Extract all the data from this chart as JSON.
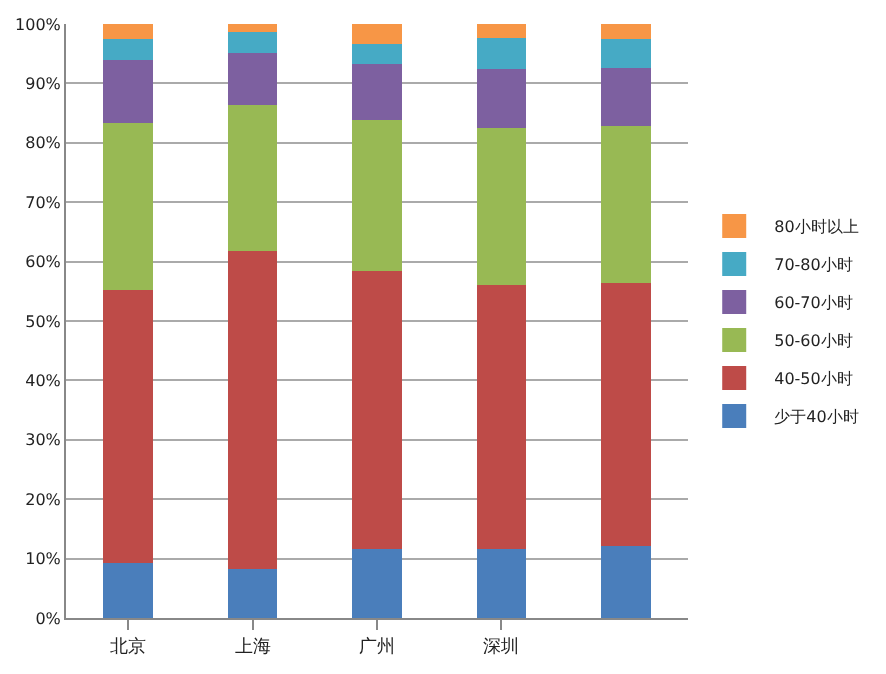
{
  "chart_data": {
    "type": "bar",
    "stacked": true,
    "categories": [
      "北京",
      "上海",
      "广州",
      "深圳",
      null
    ],
    "series": [
      {
        "name": "少于40小时",
        "color": "#4a7ebb",
        "values": [
          9.3,
          8.2,
          11.6,
          11.6,
          12.1
        ]
      },
      {
        "name": "40-50小时",
        "color": "#be4b48",
        "values": [
          45.9,
          53.6,
          46.8,
          44.5,
          44.3
        ]
      },
      {
        "name": "50-60小时",
        "color": "#98b954",
        "values": [
          28.2,
          24.6,
          25.4,
          26.4,
          26.4
        ]
      },
      {
        "name": "60-70小时",
        "color": "#7d60a0",
        "values": [
          10.6,
          8.8,
          9.5,
          9.9,
          9.8
        ]
      },
      {
        "name": "70-80小时",
        "color": "#46aac5",
        "values": [
          3.4,
          3.4,
          3.4,
          5.3,
          4.8
        ]
      },
      {
        "name": "80小时以上",
        "color": "#f79646",
        "values": [
          2.6,
          1.4,
          3.3,
          2.3,
          2.6
        ]
      }
    ],
    "ylim": [
      0,
      100
    ],
    "yticks": [
      {
        "value": 0,
        "label": "0%"
      },
      {
        "value": 10,
        "label": "10%"
      },
      {
        "value": 20,
        "label": "20%"
      },
      {
        "value": 30,
        "label": "30%"
      },
      {
        "value": 40,
        "label": "40%"
      },
      {
        "value": 50,
        "label": "50%"
      },
      {
        "value": 60,
        "label": "60%"
      },
      {
        "value": 70,
        "label": "70%"
      },
      {
        "value": 80,
        "label": "80%"
      },
      {
        "value": 90,
        "label": "90%"
      },
      {
        "value": 100,
        "label": "100%"
      }
    ],
    "grid": "y",
    "legend": "right"
  }
}
